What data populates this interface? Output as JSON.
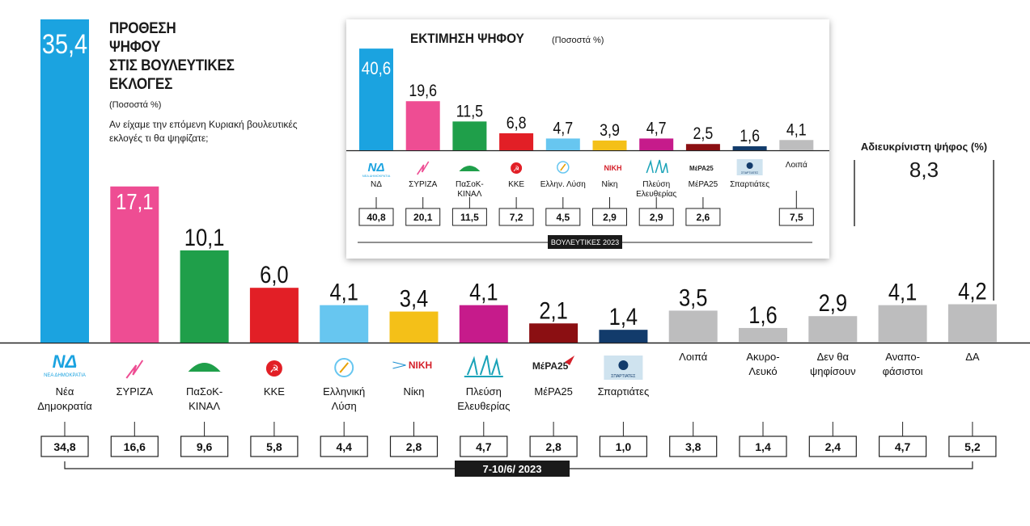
{
  "title_lines": [
    "ΠΡΟΘΕΣΗ",
    "ΨΗΦΟΥ",
    "ΣΤΙΣ ΒΟΥΛΕΥΤΙΚΕΣ",
    "ΕΚΛΟΓΕΣ"
  ],
  "units_note": "(Ποσοστά %)",
  "question": "Αν είχαμε την επόμενη Κυριακή βουλευτικές εκλογές τι θα ψηφίζατε;",
  "undecided": {
    "label": "Αδιευκρίνιστη ψήφος (%)",
    "value": "8,3"
  },
  "colors": {
    "nd": "#1ba3e0",
    "syriza": "#ee4d93",
    "pasok": "#1f9f4a",
    "kke": "#e21f26",
    "ellisi": "#67c6f0",
    "niki": "#f4c018",
    "plefsi": "#c61b8b",
    "mera": "#8b0f12",
    "spartiates": "#123b6b",
    "other": "#bdbdbe"
  },
  "chart_data": [
    {
      "type": "bar",
      "categories": [
        "Νέα Δημοκρατία",
        "ΣΥΡΙΖΑ",
        "ΠαΣοΚ-ΚΙΝΑΛ",
        "ΚΚΕ",
        "Ελληνική Λύση",
        "Νίκη",
        "Πλεύση Ελευθερίας",
        "ΜέΡΑ25",
        "Σπαρτιάτες",
        "Λοιπά",
        "Ακυρο-Λευκό",
        "Δεν θα ψηφίσουν",
        "Αναπο-φάσιστοι",
        "ΔΑ"
      ],
      "label_lines": [
        [
          "Νέα",
          "Δημοκρατία"
        ],
        [
          "ΣΥΡΙΖΑ"
        ],
        [
          "ΠαΣοΚ-",
          "ΚΙΝΑΛ"
        ],
        [
          "ΚΚΕ"
        ],
        [
          "Ελληνική",
          "Λύση"
        ],
        [
          "Νίκη"
        ],
        [
          "Πλεύση",
          "Ελευθερίας"
        ],
        [
          "ΜέΡΑ25"
        ],
        [
          "Σπαρτιάτες"
        ],
        [
          "Λοιπά"
        ],
        [
          "Ακυρο-",
          "Λευκό"
        ],
        [
          "Δεν θα",
          "ψηφίσουν"
        ],
        [
          "Αναπο-",
          "φάσιστοι"
        ],
        [
          "ΔΑ"
        ]
      ],
      "values": [
        35.4,
        17.1,
        10.1,
        6.0,
        4.1,
        3.4,
        4.1,
        2.1,
        1.4,
        3.5,
        1.6,
        2.9,
        4.1,
        4.2
      ],
      "value_labels": [
        "35,4",
        "17,1",
        "10,1",
        "6,0",
        "4,1",
        "3,4",
        "4,1",
        "2,1",
        "1,4",
        "3,5",
        "1,6",
        "2,9",
        "4,1",
        "4,2"
      ],
      "previous_values": [
        34.8,
        16.6,
        9.6,
        5.8,
        4.4,
        2.8,
        4.7,
        2.8,
        1.0,
        3.8,
        1.4,
        2.4,
        4.7,
        5.2
      ],
      "previous_labels": [
        "34,8",
        "16,6",
        "9,6",
        "5,8",
        "4,4",
        "2,8",
        "4,7",
        "2,8",
        "1,0",
        "3,8",
        "1,4",
        "2,4",
        "4,7",
        "5,2"
      ],
      "previous_period": "7-10/6/ 2023",
      "logos": [
        "ΝΔ",
        "ΣΥΡΙΖΑ",
        "ΠΑΣΟΚ",
        "ΚΚΕ",
        "ΕΛΛΗΝΙΚΗ ΛΥΣΗ",
        "ΝΙΚΗ",
        "ΠΛΕΥΣΗ",
        "ΜέΡΑ25",
        "ΣΠΑΡΤΙΑΤΕΣ",
        "",
        "",
        "",
        "",
        ""
      ],
      "logo_texts": [
        "ΝΕΑ ΔΗΜΟΚΡΑΤΙΑ",
        "",
        "",
        "",
        "",
        "ΝΙΚΗ",
        "",
        "ΜέΡΑ25",
        "ΣΠΑΡΤΙΑΤΕΣ",
        "",
        "",
        "",
        "",
        ""
      ],
      "color_keys": [
        "nd",
        "syriza",
        "pasok",
        "kke",
        "ellisi",
        "niki",
        "plefsi",
        "mera",
        "spartiates",
        "other",
        "other",
        "other",
        "other",
        "other"
      ]
    },
    {
      "type": "bar",
      "title": "ΕΚΤΙΜΗΣΗ ΨΗΦΟΥ",
      "subtitle": "(Ποσοστά %)",
      "categories": [
        "ΝΔ",
        "ΣΥΡΙΖΑ",
        "ΠαΣοΚ-ΚΙΝΑΛ",
        "ΚΚΕ",
        "Ελλην. Λύση",
        "Νίκη",
        "Πλεύση Ελευθερίας",
        "ΜέΡΑ25",
        "Σπαρτιάτες",
        "Λοιπά"
      ],
      "label_lines": [
        [
          "ΝΔ"
        ],
        [
          "ΣΥΡΙΖΑ"
        ],
        [
          "ΠαΣοΚ-",
          "ΚΙΝΑΛ"
        ],
        [
          "ΚΚΕ"
        ],
        [
          "Ελλην. Λύση"
        ],
        [
          "Νίκη"
        ],
        [
          "Πλεύση",
          "Ελευθερίας"
        ],
        [
          "ΜέΡΑ25"
        ],
        [
          "Σπαρτιάτες"
        ],
        [
          "Λοιπά"
        ]
      ],
      "values": [
        40.6,
        19.6,
        11.5,
        6.8,
        4.7,
        3.9,
        4.7,
        2.5,
        1.6,
        4.1
      ],
      "value_labels": [
        "40,6",
        "19,6",
        "11,5",
        "6,8",
        "4,7",
        "3,9",
        "4,7",
        "2,5",
        "1,6",
        "4,1"
      ],
      "previous_values": [
        40.8,
        20.1,
        11.5,
        7.2,
        4.5,
        2.9,
        2.9,
        2.6,
        null,
        7.5
      ],
      "previous_labels": [
        "40,8",
        "20,1",
        "11,5",
        "7,2",
        "4,5",
        "2,9",
        "2,9",
        "2,6",
        "",
        "7,5"
      ],
      "previous_period": "ΒΟΥΛΕΥΤΙΚΕΣ 2023",
      "logo_texts": [
        "ΝΕΑ ΔΗΜΟΚΡΑΤΙΑ",
        "",
        "",
        "",
        "",
        "ΝΙΚΗ",
        "",
        "ΜέΡΑ25",
        "ΣΠΑΡΤΙΑΤΕΣ",
        ""
      ],
      "color_keys": [
        "nd",
        "syriza",
        "pasok",
        "kke",
        "ellisi",
        "niki",
        "plefsi",
        "mera",
        "spartiates",
        "other"
      ]
    }
  ]
}
